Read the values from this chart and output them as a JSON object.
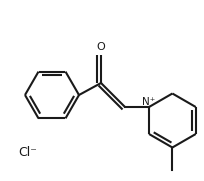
{
  "bg_color": "#ffffff",
  "line_color": "#1a1a1a",
  "line_width": 1.5,
  "figsize": [
    2.05,
    1.81
  ],
  "dpi": 100,
  "cl_label": "Cl⁻",
  "cl_fontsize": 9,
  "nplus_label": "N⁺",
  "nplus_fontsize": 7.5,
  "o_label": "O",
  "o_fontsize": 8
}
